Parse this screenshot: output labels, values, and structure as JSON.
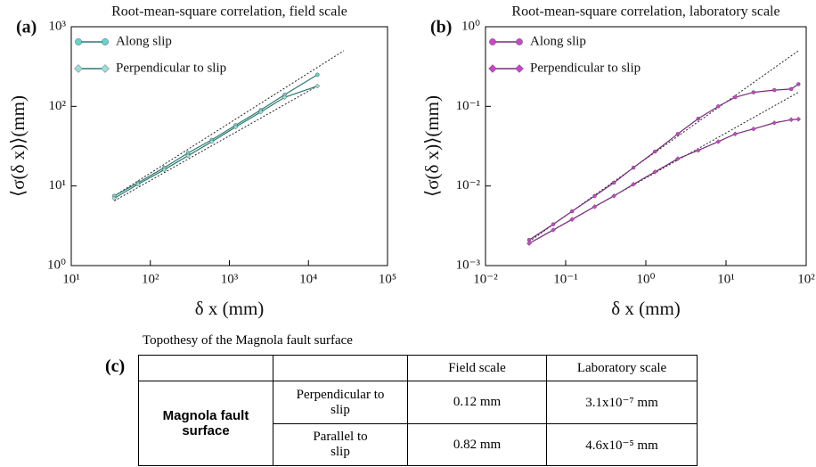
{
  "chart_data": [
    {
      "type": "line",
      "panel": "(a)",
      "title": "Root-mean-square correlation, field scale",
      "x_label": "δ x (mm)",
      "y_label": "⟨σ(δ x)⟩(mm)",
      "log_x": true,
      "log_y": true,
      "legend": "upper left",
      "x": [
        35,
        70,
        150,
        300,
        600,
        1200,
        2500,
        5000,
        13000
      ],
      "series": [
        {
          "name": "Along slip",
          "color": "#5fd6d0",
          "line_color": "#2a7a70",
          "marker": "circle",
          "values": [
            7.5,
            11,
            17,
            26,
            38,
            58,
            90,
            140,
            250
          ]
        },
        {
          "name": "Perpendicular to slip",
          "color": "#9adfd6",
          "line_color": "#2a7a70",
          "marker": "diamond",
          "values": [
            7,
            10.5,
            16,
            24,
            36,
            55,
            85,
            130,
            180
          ]
        }
      ],
      "fit_lines": [
        {
          "x": [
            35,
            28000
          ],
          "values": [
            7.5,
            500
          ]
        },
        {
          "x": [
            35,
            13000
          ],
          "values": [
            6.5,
            180
          ]
        }
      ],
      "xlim": [
        10,
        100000
      ],
      "ylim": [
        1,
        1000
      ],
      "xticks": [
        {
          "value": 10,
          "label": "10¹"
        },
        {
          "value": 100,
          "label": "10²"
        },
        {
          "value": 1000,
          "label": "10³"
        },
        {
          "value": 10000,
          "label": "10⁴"
        },
        {
          "value": 100000,
          "label": "10⁵"
        }
      ],
      "yticks": [
        {
          "value": 1,
          "label": "10⁰"
        },
        {
          "value": 10,
          "label": "10¹"
        },
        {
          "value": 100,
          "label": "10²"
        },
        {
          "value": 1000,
          "label": "10³"
        }
      ]
    },
    {
      "type": "line",
      "panel": "(b)",
      "title": "Root-mean-square correlation, laboratory scale",
      "x_label": "δ x (mm)",
      "y_label": "⟨σ(δ x)⟩(mm)",
      "log_x": true,
      "log_y": true,
      "legend": "upper left",
      "x": [
        0.035,
        0.07,
        0.12,
        0.23,
        0.4,
        0.7,
        1.3,
        2.5,
        4.5,
        8,
        13,
        22,
        40,
        65,
        80
      ],
      "series": [
        {
          "name": "Along slip",
          "color": "#cc44cc",
          "line_color": "#7a2a7a",
          "marker": "circle",
          "values": [
            0.0021,
            0.0033,
            0.0048,
            0.0075,
            0.011,
            0.017,
            0.027,
            0.045,
            0.07,
            0.1,
            0.13,
            0.15,
            0.16,
            0.165,
            0.19
          ]
        },
        {
          "name": "Perpendicular to slip",
          "color": "#cc44cc",
          "line_color": "#7a2a7a",
          "marker": "diamond",
          "values": [
            0.0019,
            0.0028,
            0.0038,
            0.0055,
            0.0075,
            0.0105,
            0.015,
            0.022,
            0.028,
            0.036,
            0.045,
            0.052,
            0.062,
            0.068,
            0.069
          ]
        }
      ],
      "fit_lines": [
        {
          "x": [
            0.035,
            80
          ],
          "values": [
            0.002,
            0.5
          ]
        },
        {
          "x": [
            0.035,
            80
          ],
          "values": [
            0.0019,
            0.15
          ]
        }
      ],
      "xlim": [
        0.01,
        100
      ],
      "ylim": [
        0.001,
        1
      ],
      "xticks": [
        {
          "value": 0.01,
          "label": "10⁻²"
        },
        {
          "value": 0.1,
          "label": "10⁻¹"
        },
        {
          "value": 1,
          "label": "10⁰"
        },
        {
          "value": 10,
          "label": "10¹"
        },
        {
          "value": 100,
          "label": "10²"
        }
      ],
      "yticks": [
        {
          "value": 0.001,
          "label": "10⁻³"
        },
        {
          "value": 0.01,
          "label": "10⁻²"
        },
        {
          "value": 0.1,
          "label": "10⁻¹"
        },
        {
          "value": 1,
          "label": "10⁰"
        }
      ]
    }
  ],
  "table": {
    "label": "(c)",
    "title": "Topothesy of the Magnola fault surface",
    "columns": [
      "Field scale",
      "Laboratory scale"
    ],
    "row_group": "Magnola fault surface",
    "rows": [
      {
        "label": "Perpendicular to slip",
        "cells": [
          "0.12 mm",
          "3.1x10⁻⁷ mm"
        ]
      },
      {
        "label": "Parallel to slip",
        "cells": [
          "0.82 mm",
          "4.6x10⁻⁵ mm"
        ]
      }
    ]
  }
}
